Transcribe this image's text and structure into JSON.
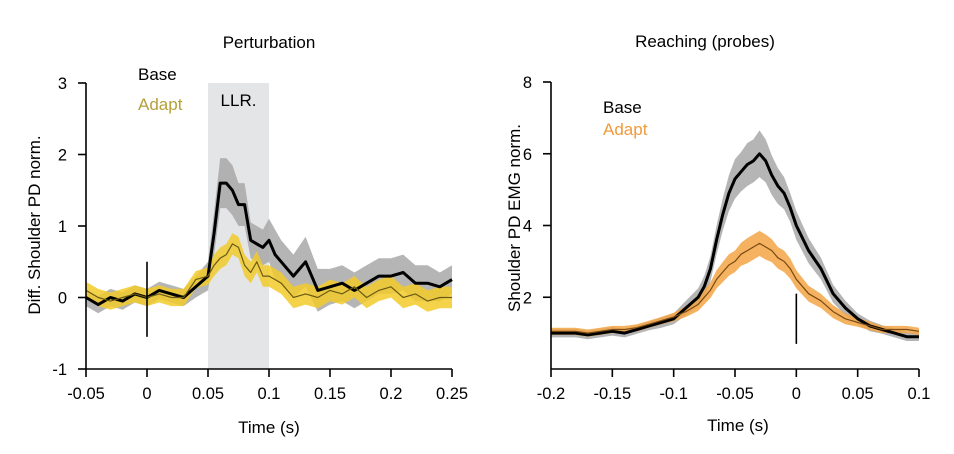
{
  "chart_data": [
    {
      "type": "line",
      "title": "Perturbation",
      "xlabel": "Time (s)",
      "ylabel": "Diff. Shoulder PD norm.",
      "xlim": [
        -0.05,
        0.25
      ],
      "ylim": [
        -1,
        3
      ],
      "xticks": [
        "-0.05",
        "0",
        "0.05",
        "0.1",
        "0.15",
        "0.2",
        "0.25"
      ],
      "xtick_values": [
        -0.05,
        0,
        0.05,
        0.1,
        0.15,
        0.2,
        0.25
      ],
      "yticks": [
        "-1",
        "0",
        "1",
        "2",
        "3"
      ],
      "ytick_values": [
        -1,
        0,
        1,
        2,
        3
      ],
      "shaded_region": {
        "label": "LLR.",
        "x_start": 0.05,
        "x_end": 0.1,
        "color": "#e4e5e7"
      },
      "marker_line": {
        "x": 0,
        "y_start": -0.55,
        "y_end": 0.5
      },
      "legend": {
        "placement": "top-left",
        "entries": [
          {
            "name": "Base",
            "color": "#000000"
          },
          {
            "name": "Adapt",
            "color": "#b5a03a"
          }
        ]
      },
      "series": [
        {
          "name": "Base",
          "line_color": "#000000",
          "band_color": "#a8a8a8",
          "x": [
            -0.05,
            -0.04,
            -0.03,
            -0.02,
            -0.01,
            0.0,
            0.01,
            0.02,
            0.03,
            0.04,
            0.05,
            0.055,
            0.06,
            0.065,
            0.07,
            0.075,
            0.08,
            0.085,
            0.09,
            0.095,
            0.1,
            0.105,
            0.11,
            0.12,
            0.13,
            0.14,
            0.15,
            0.16,
            0.17,
            0.18,
            0.19,
            0.2,
            0.21,
            0.22,
            0.23,
            0.24,
            0.25
          ],
          "values": [
            0.0,
            -0.1,
            0.0,
            -0.05,
            0.05,
            0.0,
            0.1,
            0.05,
            0.0,
            0.15,
            0.3,
            0.9,
            1.6,
            1.6,
            1.5,
            1.3,
            1.3,
            0.8,
            0.75,
            0.7,
            0.8,
            0.6,
            0.5,
            0.3,
            0.5,
            0.1,
            0.15,
            0.2,
            0.1,
            0.2,
            0.3,
            0.3,
            0.35,
            0.2,
            0.2,
            0.15,
            0.25
          ],
          "band": [
            0.12,
            0.12,
            0.12,
            0.12,
            0.12,
            0.12,
            0.12,
            0.12,
            0.12,
            0.15,
            0.2,
            0.3,
            0.35,
            0.35,
            0.35,
            0.3,
            0.3,
            0.25,
            0.25,
            0.25,
            0.3,
            0.35,
            0.3,
            0.3,
            0.35,
            0.3,
            0.25,
            0.25,
            0.25,
            0.25,
            0.25,
            0.25,
            0.25,
            0.25,
            0.25,
            0.2,
            0.2
          ]
        },
        {
          "name": "Adapt",
          "line_color": "#6b5a14",
          "band_color": "#f2cb2c",
          "x": [
            -0.05,
            -0.04,
            -0.03,
            -0.02,
            -0.01,
            0.0,
            0.01,
            0.02,
            0.03,
            0.04,
            0.05,
            0.055,
            0.06,
            0.065,
            0.07,
            0.075,
            0.08,
            0.085,
            0.09,
            0.095,
            0.1,
            0.105,
            0.11,
            0.12,
            0.13,
            0.14,
            0.15,
            0.16,
            0.17,
            0.18,
            0.19,
            0.2,
            0.21,
            0.22,
            0.23,
            0.24,
            0.25
          ],
          "values": [
            0.1,
            0.0,
            -0.05,
            0.0,
            0.05,
            0.0,
            0.05,
            0.0,
            0.0,
            0.25,
            0.3,
            0.45,
            0.55,
            0.6,
            0.75,
            0.7,
            0.45,
            0.35,
            0.5,
            0.3,
            0.3,
            0.25,
            0.2,
            0.0,
            0.05,
            0.0,
            0.1,
            0.05,
            0.15,
            0.0,
            0.1,
            0.15,
            0.0,
            0.05,
            -0.05,
            0.0,
            0.0
          ],
          "band": [
            0.12,
            0.12,
            0.12,
            0.12,
            0.12,
            0.12,
            0.12,
            0.12,
            0.12,
            0.12,
            0.12,
            0.15,
            0.15,
            0.15,
            0.15,
            0.15,
            0.15,
            0.15,
            0.15,
            0.15,
            0.15,
            0.15,
            0.15,
            0.15,
            0.15,
            0.15,
            0.15,
            0.15,
            0.15,
            0.15,
            0.15,
            0.15,
            0.15,
            0.15,
            0.15,
            0.15,
            0.15
          ]
        }
      ]
    },
    {
      "type": "line",
      "title": "Reaching (probes)",
      "xlabel": "Time (s)",
      "ylabel": "Shoulder PD EMG norm.",
      "xlim": [
        -0.2,
        0.1
      ],
      "ylim": [
        0,
        8
      ],
      "xticks": [
        "-0.2",
        "-0.15",
        "-0.1",
        "-0.05",
        "0",
        "0.05",
        "0.1"
      ],
      "xtick_values": [
        -0.2,
        -0.15,
        -0.1,
        -0.05,
        0,
        0.05,
        0.1
      ],
      "yticks": [
        "2",
        "4",
        "6",
        "8"
      ],
      "ytick_values": [
        2,
        4,
        6,
        8
      ],
      "marker_line": {
        "x": 0,
        "y_start": 0.7,
        "y_end": 2.1
      },
      "legend": {
        "placement": "top-left",
        "entries": [
          {
            "name": "Base",
            "color": "#000000"
          },
          {
            "name": "Adapt",
            "color": "#f19a3a"
          }
        ]
      },
      "series": [
        {
          "name": "Base",
          "line_color": "#000000",
          "band_color": "#a8a8a8",
          "x": [
            -0.2,
            -0.19,
            -0.18,
            -0.17,
            -0.16,
            -0.15,
            -0.14,
            -0.13,
            -0.12,
            -0.11,
            -0.1,
            -0.09,
            -0.08,
            -0.075,
            -0.07,
            -0.065,
            -0.06,
            -0.055,
            -0.05,
            -0.045,
            -0.04,
            -0.035,
            -0.03,
            -0.025,
            -0.02,
            -0.015,
            -0.01,
            -0.005,
            0.0,
            0.01,
            0.02,
            0.03,
            0.04,
            0.05,
            0.06,
            0.07,
            0.08,
            0.09,
            0.1
          ],
          "values": [
            1.0,
            1.0,
            1.0,
            0.95,
            1.0,
            1.05,
            1.0,
            1.1,
            1.2,
            1.3,
            1.4,
            1.7,
            2.0,
            2.3,
            2.8,
            3.6,
            4.3,
            4.9,
            5.3,
            5.5,
            5.7,
            5.8,
            6.0,
            5.8,
            5.4,
            5.1,
            4.9,
            4.5,
            4.0,
            3.3,
            2.8,
            2.1,
            1.7,
            1.4,
            1.2,
            1.1,
            1.0,
            0.9,
            0.9
          ],
          "band": [
            0.12,
            0.12,
            0.12,
            0.12,
            0.12,
            0.12,
            0.12,
            0.12,
            0.12,
            0.15,
            0.15,
            0.2,
            0.25,
            0.3,
            0.35,
            0.4,
            0.45,
            0.5,
            0.55,
            0.55,
            0.6,
            0.6,
            0.65,
            0.6,
            0.55,
            0.5,
            0.45,
            0.4,
            0.4,
            0.35,
            0.3,
            0.25,
            0.2,
            0.15,
            0.15,
            0.12,
            0.12,
            0.12,
            0.12
          ]
        },
        {
          "name": "Adapt",
          "line_color": "#7a4a12",
          "band_color": "#f3a544",
          "x": [
            -0.2,
            -0.19,
            -0.18,
            -0.17,
            -0.16,
            -0.15,
            -0.14,
            -0.13,
            -0.12,
            -0.11,
            -0.1,
            -0.09,
            -0.08,
            -0.075,
            -0.07,
            -0.065,
            -0.06,
            -0.055,
            -0.05,
            -0.045,
            -0.04,
            -0.035,
            -0.03,
            -0.025,
            -0.02,
            -0.015,
            -0.01,
            -0.005,
            0.0,
            0.01,
            0.02,
            0.03,
            0.04,
            0.05,
            0.06,
            0.07,
            0.08,
            0.09,
            0.1
          ],
          "values": [
            1.05,
            1.05,
            1.05,
            1.0,
            1.05,
            1.1,
            1.1,
            1.15,
            1.25,
            1.35,
            1.45,
            1.6,
            1.8,
            2.0,
            2.2,
            2.5,
            2.7,
            2.9,
            3.0,
            3.2,
            3.3,
            3.4,
            3.5,
            3.4,
            3.3,
            3.1,
            3.0,
            2.8,
            2.5,
            2.1,
            1.9,
            1.6,
            1.4,
            1.3,
            1.2,
            1.1,
            1.1,
            1.1,
            1.05
          ],
          "band": [
            0.1,
            0.1,
            0.1,
            0.1,
            0.1,
            0.1,
            0.1,
            0.1,
            0.1,
            0.1,
            0.12,
            0.15,
            0.18,
            0.2,
            0.22,
            0.25,
            0.28,
            0.3,
            0.3,
            0.32,
            0.35,
            0.35,
            0.35,
            0.35,
            0.32,
            0.3,
            0.3,
            0.28,
            0.25,
            0.22,
            0.2,
            0.18,
            0.15,
            0.12,
            0.12,
            0.1,
            0.1,
            0.1,
            0.1
          ]
        }
      ]
    }
  ]
}
